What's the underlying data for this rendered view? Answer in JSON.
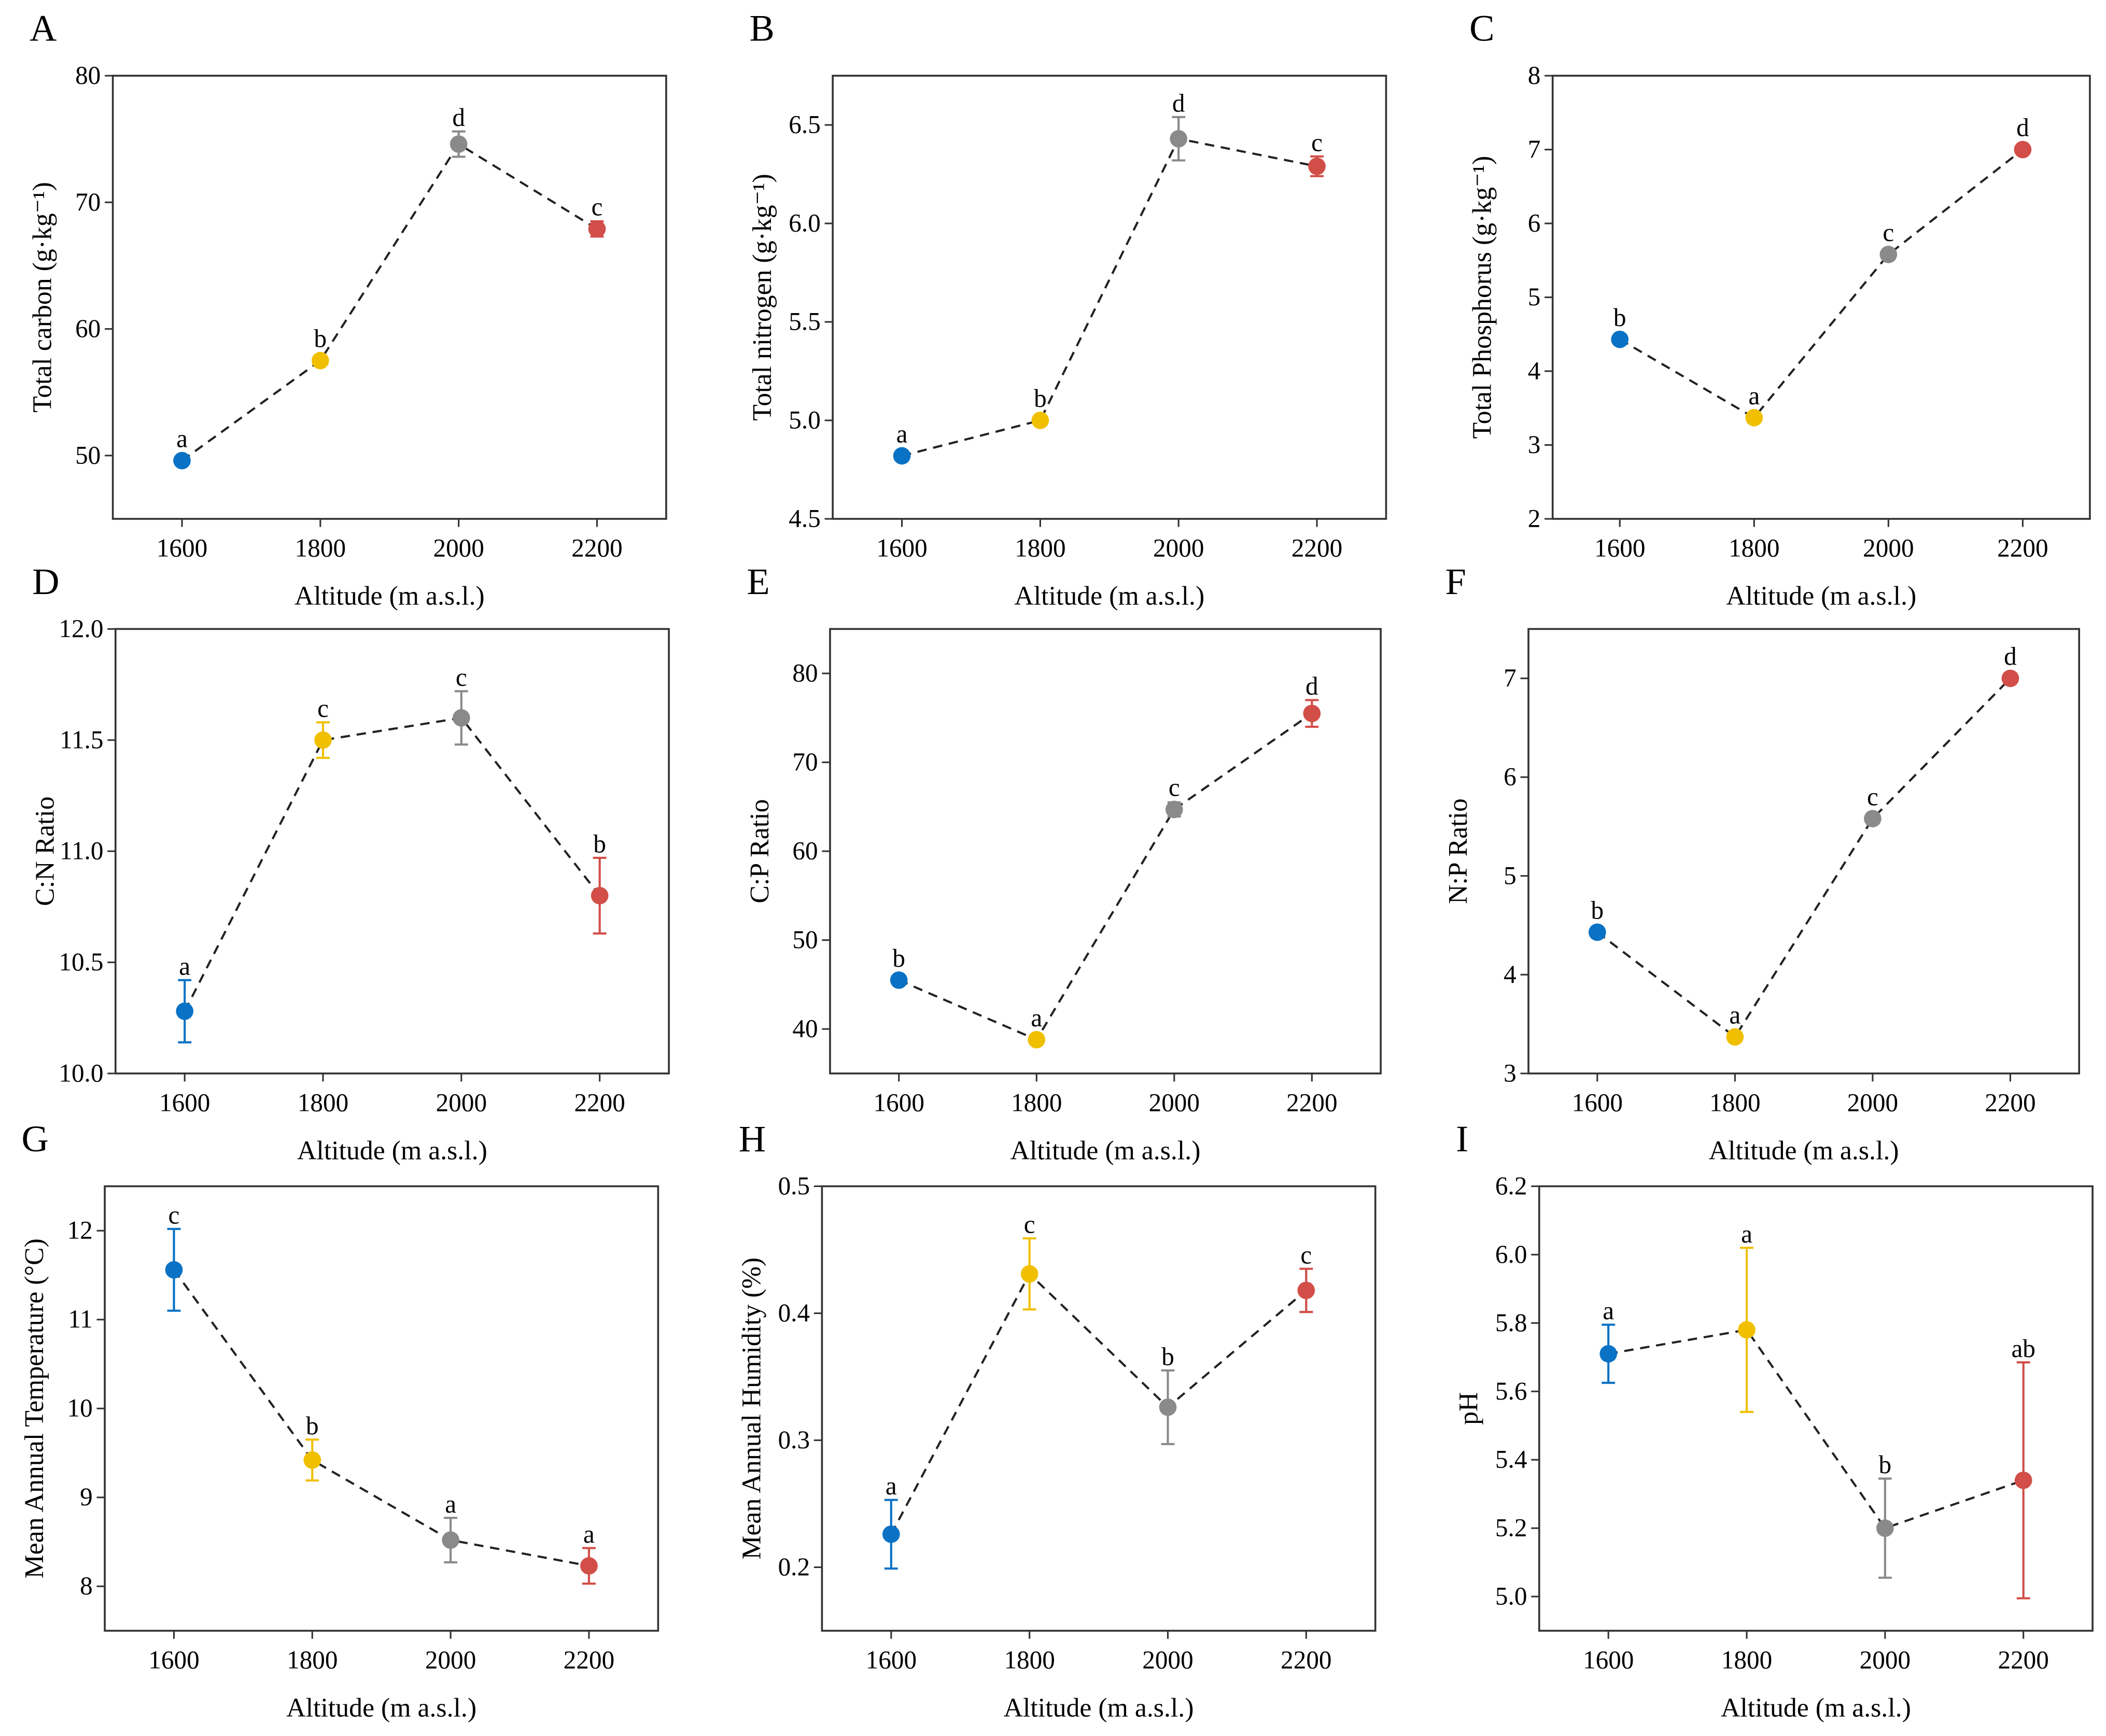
{
  "colors": {
    "1600": "#0a72c4",
    "1800": "#f0c000",
    "2000": "#8a8a8a",
    "2200": "#d24e48",
    "line": "#222222"
  },
  "chart_data": [
    {
      "panel": "A",
      "type": "scatter",
      "xlabel": "Altitude (m a.s.l.)",
      "ylabel": "Total carbon (g·kg⁻¹)",
      "x": [
        1600,
        1800,
        2000,
        2200
      ],
      "xlim": [
        1500,
        2300
      ],
      "ylim": [
        45,
        80
      ],
      "yticks": [
        50,
        60,
        70,
        80
      ],
      "ytick_labels": [
        "50",
        "60",
        "70",
        "80"
      ],
      "values": [
        49.6,
        57.5,
        74.6,
        67.9
      ],
      "errors": [
        0.3,
        0.3,
        1.0,
        0.6
      ],
      "letters": [
        "a",
        "b",
        "d",
        "c"
      ]
    },
    {
      "panel": "B",
      "type": "scatter",
      "xlabel": "Altitude (m a.s.l.)",
      "ylabel": "Total nitrogen (g·kg⁻¹)",
      "x": [
        1600,
        1800,
        2000,
        2200
      ],
      "xlim": [
        1500,
        2300
      ],
      "ylim": [
        4.5,
        6.75
      ],
      "yticks": [
        4.5,
        5.0,
        5.5,
        6.0,
        6.5
      ],
      "ytick_labels": [
        "4.5",
        "5.0",
        "5.5",
        "6.0",
        "6.5"
      ],
      "values": [
        4.82,
        5.0,
        6.43,
        6.29
      ],
      "errors": [
        0.02,
        0.02,
        0.11,
        0.05
      ],
      "letters": [
        "a",
        "b",
        "d",
        "c"
      ]
    },
    {
      "panel": "C",
      "type": "scatter",
      "xlabel": "Altitude (m a.s.l.)",
      "ylabel": "Total Phosphorus (g·kg⁻¹)",
      "x": [
        1600,
        1800,
        2000,
        2200
      ],
      "xlim": [
        1500,
        2300
      ],
      "ylim": [
        2,
        8
      ],
      "yticks": [
        2,
        3,
        4,
        5,
        6,
        7,
        8
      ],
      "ytick_labels": [
        "2",
        "3",
        "4",
        "5",
        "6",
        "7",
        "8"
      ],
      "values": [
        4.43,
        3.37,
        5.58,
        7.0
      ],
      "errors": [
        0.05,
        0.05,
        0.05,
        0.05
      ],
      "letters": [
        "b",
        "a",
        "c",
        "d"
      ]
    },
    {
      "panel": "D",
      "type": "scatter",
      "xlabel": "Altitude (m a.s.l.)",
      "ylabel": "C:N Ratio",
      "x": [
        1600,
        1800,
        2000,
        2200
      ],
      "xlim": [
        1500,
        2300
      ],
      "ylim": [
        10,
        12
      ],
      "yticks": [
        10,
        10.5,
        11,
        11.5,
        12
      ],
      "ytick_labels": [
        "10.0",
        "10.5",
        "11.0",
        "11.5",
        "12.0"
      ],
      "values": [
        10.28,
        11.5,
        11.6,
        10.8
      ],
      "errors": [
        0.14,
        0.08,
        0.12,
        0.17
      ],
      "letters": [
        "a",
        "c",
        "c",
        "b"
      ]
    },
    {
      "panel": "E",
      "type": "scatter",
      "xlabel": "Altitude (m a.s.l.)",
      "ylabel": "C:P Ratio",
      "x": [
        1600,
        1800,
        2000,
        2200
      ],
      "xlim": [
        1500,
        2300
      ],
      "ylim": [
        35,
        85
      ],
      "yticks": [
        40,
        50,
        60,
        70,
        80
      ],
      "ytick_labels": [
        "40",
        "50",
        "60",
        "70",
        "80"
      ],
      "values": [
        45.5,
        38.8,
        64.7,
        75.5
      ],
      "errors": [
        0.3,
        0.5,
        0.8,
        1.5
      ],
      "letters": [
        "b",
        "a",
        "c",
        "d"
      ]
    },
    {
      "panel": "F",
      "type": "scatter",
      "xlabel": "Altitude (m a.s.l.)",
      "ylabel": "N:P Ratio",
      "x": [
        1600,
        1800,
        2000,
        2200
      ],
      "xlim": [
        1500,
        2300
      ],
      "ylim": [
        3,
        7.5
      ],
      "yticks": [
        3,
        4,
        5,
        6,
        7
      ],
      "ytick_labels": [
        "3",
        "4",
        "5",
        "6",
        "7"
      ],
      "values": [
        4.43,
        3.37,
        5.58,
        7.0
      ],
      "errors": [
        0.05,
        0.05,
        0.05,
        0.05
      ],
      "letters": [
        "b",
        "a",
        "c",
        "d"
      ]
    },
    {
      "panel": "G",
      "type": "scatter",
      "xlabel": "Altitude (m a.s.l.)",
      "ylabel": "Mean Annual Temperature (°C)",
      "x": [
        1600,
        1800,
        2000,
        2200
      ],
      "xlim": [
        1500,
        2300
      ],
      "ylim": [
        7.5,
        12.5
      ],
      "yticks": [
        8,
        9,
        10,
        11,
        12
      ],
      "ytick_labels": [
        "8",
        "9",
        "10",
        "11",
        "12"
      ],
      "values": [
        11.56,
        9.42,
        8.52,
        8.23
      ],
      "errors": [
        0.46,
        0.23,
        0.25,
        0.2
      ],
      "letters": [
        "c",
        "b",
        "a",
        "a"
      ]
    },
    {
      "panel": "H",
      "type": "scatter",
      "xlabel": "Altitude (m a.s.l.)",
      "ylabel": "Mean Annual Humidity (%)",
      "x": [
        1600,
        1800,
        2000,
        2200
      ],
      "xlim": [
        1500,
        2300
      ],
      "ylim": [
        0.15,
        0.5
      ],
      "yticks": [
        0.2,
        0.3,
        0.4,
        0.5
      ],
      "ytick_labels": [
        "0.2",
        "0.3",
        "0.4",
        "0.5"
      ],
      "values": [
        0.226,
        0.431,
        0.326,
        0.418
      ],
      "errors": [
        0.027,
        0.028,
        0.029,
        0.017
      ],
      "letters": [
        "a",
        "c",
        "b",
        "c"
      ]
    },
    {
      "panel": "I",
      "type": "scatter",
      "xlabel": "Altitude (m a.s.l.)",
      "ylabel": "pH",
      "x": [
        1600,
        1800,
        2000,
        2200
      ],
      "xlim": [
        1500,
        2300
      ],
      "ylim": [
        4.9,
        6.2
      ],
      "yticks": [
        5.0,
        5.2,
        5.4,
        5.6,
        5.8,
        6.0,
        6.2
      ],
      "ytick_labels": [
        "5.0",
        "5.2",
        "5.4",
        "5.6",
        "5.8",
        "6.0",
        "6.2"
      ],
      "values": [
        5.71,
        5.78,
        5.2,
        5.34
      ],
      "errors": [
        0.085,
        0.24,
        0.145,
        0.345
      ],
      "letters": [
        "a",
        "a",
        "b",
        "ab"
      ]
    }
  ]
}
